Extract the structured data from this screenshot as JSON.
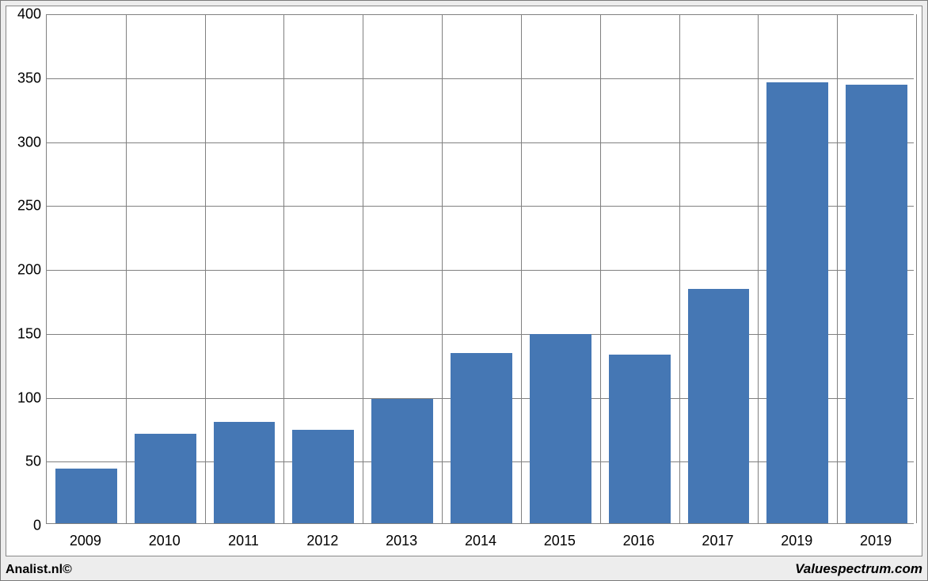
{
  "chart": {
    "type": "bar",
    "categories": [
      "2009",
      "2010",
      "2011",
      "2012",
      "2013",
      "2014",
      "2015",
      "2016",
      "2017",
      "2019",
      "2019"
    ],
    "values": [
      43,
      70,
      79,
      73,
      97,
      133,
      148,
      132,
      183,
      345,
      343
    ],
    "bar_color": "#4577b4",
    "background_color": "#ffffff",
    "outer_background_color": "#ededed",
    "grid_color": "#808080",
    "border_color": "#888888",
    "ylim_min": 0,
    "ylim_max": 400,
    "ytick_step": 50,
    "yticks": [
      0,
      50,
      100,
      150,
      200,
      250,
      300,
      350,
      400
    ],
    "bar_width_ratio": 0.78,
    "tick_fontsize": 18,
    "tick_color": "#000000"
  },
  "footer": {
    "left": "Analist.nl©",
    "right": "Valuespectrum.com"
  }
}
